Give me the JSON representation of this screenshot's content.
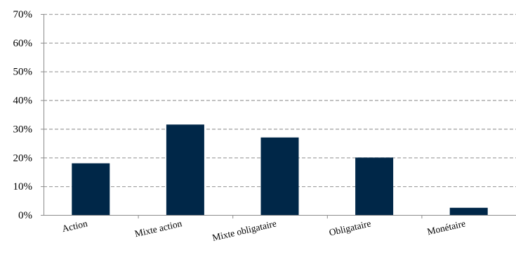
{
  "chart_data": {
    "type": "bar",
    "title": "",
    "xlabel": "",
    "ylabel": "",
    "categories": [
      "Action",
      "Mixte action",
      "Mixte obligataire",
      "Obligataire",
      "Monétaire"
    ],
    "values": [
      18,
      31.5,
      27,
      20,
      2.5
    ],
    "ylim": [
      0,
      70
    ],
    "ytick_values": [
      0,
      10,
      20,
      30,
      40,
      50,
      60,
      70
    ],
    "ytick_labels": [
      "0%",
      "10%",
      "20%",
      "30%",
      "40%",
      "50%",
      "60%",
      "70%"
    ],
    "grid": true,
    "legend": "none",
    "colors": {
      "bar": "#002748",
      "grid": "#a6a6a6",
      "axis": "#8c8c8c"
    }
  }
}
